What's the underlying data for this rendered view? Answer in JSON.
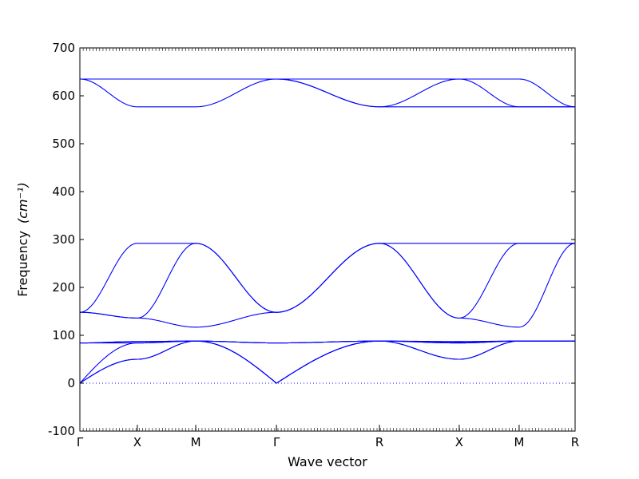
{
  "chart_data": {
    "type": "line",
    "xlabel": "Wave vector",
    "ylabel": "Frequency",
    "ylabel_unit_html": "(cm⁻¹)",
    "ylim": [
      -100,
      700
    ],
    "yticks": [
      -100,
      0,
      100,
      200,
      300,
      400,
      500,
      600,
      700
    ],
    "kpoints": [
      {
        "label": "Γ",
        "pos": 0.0
      },
      {
        "label": "X",
        "pos": 0.116
      },
      {
        "label": "M",
        "pos": 0.234
      },
      {
        "label": "Γ",
        "pos": 0.397
      },
      {
        "label": "R",
        "pos": 0.605
      },
      {
        "label": "X",
        "pos": 0.766
      },
      {
        "label": "M",
        "pos": 0.887
      },
      {
        "label": "R",
        "pos": 1.0
      }
    ],
    "zero_line": {
      "y": 0,
      "style": "dotted"
    },
    "series_color": "#0000ff",
    "branches": [
      {
        "x": [
          0.0,
          0.116,
          0.234,
          0.397,
          0.605,
          0.766,
          0.887,
          1.0
        ],
        "y": [
          635,
          635,
          635,
          635,
          635,
          635,
          635,
          577
        ]
      },
      {
        "x": [
          0.0,
          0.116,
          0.234,
          0.397,
          0.605,
          0.766,
          0.887,
          1.0
        ],
        "y": [
          635,
          635,
          635,
          635,
          577,
          635,
          577,
          577
        ]
      },
      {
        "x": [
          0.0,
          0.116,
          0.234,
          0.397,
          0.605,
          0.766,
          0.887,
          1.0
        ],
        "y": [
          635,
          577,
          577,
          635,
          577,
          577,
          577,
          577
        ]
      },
      {
        "x": [
          0.0,
          0.116,
          0.234,
          0.397,
          0.605,
          0.766,
          0.887,
          1.0
        ],
        "y": [
          148,
          292,
          292,
          148,
          292,
          292,
          292,
          292
        ]
      },
      {
        "x": [
          0.0,
          0.116,
          0.234,
          0.397,
          0.605,
          0.766,
          0.887,
          1.0
        ],
        "y": [
          148,
          136,
          292,
          148,
          292,
          136,
          292,
          292
        ]
      },
      {
        "x": [
          0.0,
          0.116,
          0.234,
          0.397,
          0.605,
          0.766,
          0.887,
          1.0
        ],
        "y": [
          148,
          136,
          117,
          148,
          292,
          136,
          117,
          292
        ]
      },
      {
        "x": [
          0.0,
          0.116,
          0.234,
          0.397,
          0.605,
          0.766,
          0.887,
          1.0
        ],
        "y": [
          84,
          87,
          88,
          84,
          88,
          87,
          88,
          88
        ]
      },
      {
        "x": [
          0.0,
          0.116,
          0.234,
          0.397,
          0.605,
          0.766,
          0.887,
          1.0
        ],
        "y": [
          84,
          87,
          88,
          84,
          88,
          86,
          88,
          88
        ]
      },
      {
        "x": [
          0.0,
          0.116,
          0.234,
          0.397,
          0.605,
          0.766,
          0.887,
          1.0
        ],
        "y": [
          84,
          84,
          88,
          84,
          88,
          84,
          88,
          88
        ]
      },
      {
        "x": [
          0.0,
          0.116,
          0.234,
          0.397,
          0.605,
          0.766,
          0.887,
          1.0
        ],
        "y": [
          0,
          50,
          88,
          0,
          88,
          50,
          88,
          88
        ]
      },
      {
        "x": [
          0.0,
          0.116,
          0.234,
          0.397,
          0.605,
          0.766,
          0.887,
          1.0
        ],
        "y": [
          0,
          50,
          88,
          0,
          88,
          50,
          88,
          88
        ]
      },
      {
        "x": [
          0.0,
          0.116,
          0.234,
          0.397,
          0.605,
          0.766,
          0.887,
          1.0
        ],
        "y": [
          0,
          84,
          88,
          0,
          88,
          84,
          88,
          88
        ]
      }
    ]
  }
}
